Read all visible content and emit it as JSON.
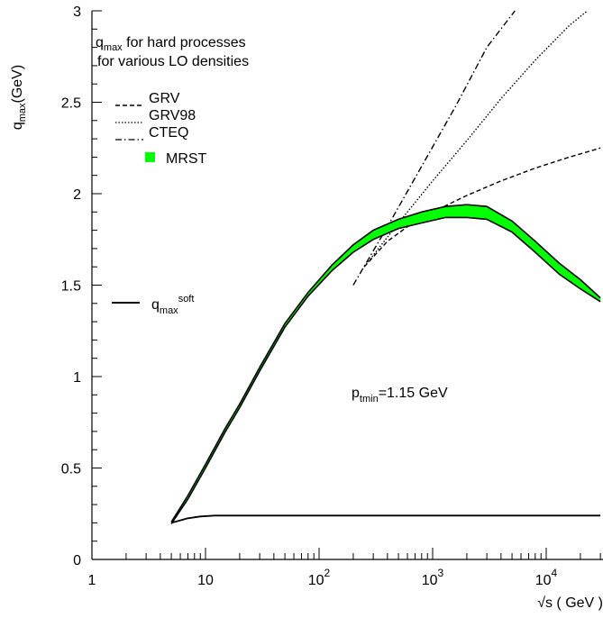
{
  "chart_data": {
    "type": "line",
    "x_scale": "log",
    "xlim": [
      1,
      30000
    ],
    "ylim": [
      0,
      3
    ],
    "grid": false,
    "ylabel_main": "q",
    "ylabel_sub": "max",
    "ylabel_tail": "(GeV)",
    "xlabel": "√s ( GeV )",
    "yticks": [
      {
        "value": 0,
        "label": "0"
      },
      {
        "value": 0.5,
        "label": "0.5"
      },
      {
        "value": 1,
        "label": "1"
      },
      {
        "value": 1.5,
        "label": "1.5"
      },
      {
        "value": 2,
        "label": "2"
      },
      {
        "value": 2.5,
        "label": "2.5"
      },
      {
        "value": 3,
        "label": "3"
      }
    ],
    "xticks": [
      {
        "value": 1,
        "base": "1",
        "exp": ""
      },
      {
        "value": 10,
        "base": "10",
        "exp": ""
      },
      {
        "value": 100,
        "base": "10",
        "exp": "2"
      },
      {
        "value": 1000,
        "base": "10",
        "exp": "3"
      },
      {
        "value": 10000,
        "base": "10",
        "exp": "4"
      }
    ],
    "title_line1_main": "q",
    "title_line1_sub": "max",
    "title_line1_tail": " for hard processes",
    "title_line2": "for various LO densities",
    "annotation_main": "p",
    "annotation_sub": "tmin",
    "annotation_tail": "=1.15 GeV",
    "soft_label_main": "q",
    "soft_label_sub": "max",
    "soft_label_sup": "soft",
    "legend": [
      {
        "name": "GRV",
        "style": "dashed"
      },
      {
        "name": "GRV98",
        "style": "dotted"
      },
      {
        "name": "CTEQ",
        "style": "dashdot"
      },
      {
        "name": "MRST",
        "style": "band",
        "color": "#00ff00"
      }
    ],
    "series": [
      {
        "name": "GRV",
        "style": "dashed",
        "x": [
          250,
          400,
          700,
          1000,
          2000,
          4000,
          8000,
          16000,
          30000
        ],
        "y": [
          1.6,
          1.74,
          1.85,
          1.9,
          1.99,
          2.07,
          2.14,
          2.2,
          2.25
        ]
      },
      {
        "name": "GRV98",
        "style": "dotted",
        "x": [
          250,
          500,
          1000,
          2000,
          4000,
          8000,
          16000,
          23000
        ],
        "y": [
          1.6,
          1.84,
          2.07,
          2.29,
          2.52,
          2.73,
          2.92,
          3.0
        ]
      },
      {
        "name": "CTEQ",
        "style": "dashdot",
        "x": [
          200,
          400,
          800,
          1600,
          3000,
          5300
        ],
        "y": [
          1.5,
          1.82,
          2.15,
          2.48,
          2.8,
          3.0
        ]
      },
      {
        "name": "MRST",
        "style": "band",
        "color": "#00ff00",
        "x": [
          5,
          7,
          10,
          15,
          20,
          30,
          50,
          80,
          130,
          200,
          300,
          500,
          800,
          1300,
          2000,
          3000,
          5000,
          8000,
          13000,
          20000,
          30000
        ],
        "y_upper": [
          0.205,
          0.35,
          0.52,
          0.72,
          0.85,
          1.05,
          1.29,
          1.46,
          1.61,
          1.72,
          1.8,
          1.86,
          1.9,
          1.93,
          1.94,
          1.93,
          1.85,
          1.74,
          1.62,
          1.53,
          1.43
        ],
        "y_lower": [
          0.195,
          0.33,
          0.5,
          0.7,
          0.83,
          1.03,
          1.27,
          1.44,
          1.58,
          1.68,
          1.75,
          1.81,
          1.84,
          1.87,
          1.87,
          1.86,
          1.79,
          1.68,
          1.56,
          1.48,
          1.41
        ]
      },
      {
        "name": "q_max^soft",
        "style": "solid",
        "x": [
          5,
          7,
          9,
          12,
          20,
          50,
          100,
          1000,
          10000,
          30000
        ],
        "y": [
          0.2,
          0.225,
          0.235,
          0.24,
          0.24,
          0.24,
          0.24,
          0.24,
          0.24,
          0.24
        ]
      }
    ]
  }
}
